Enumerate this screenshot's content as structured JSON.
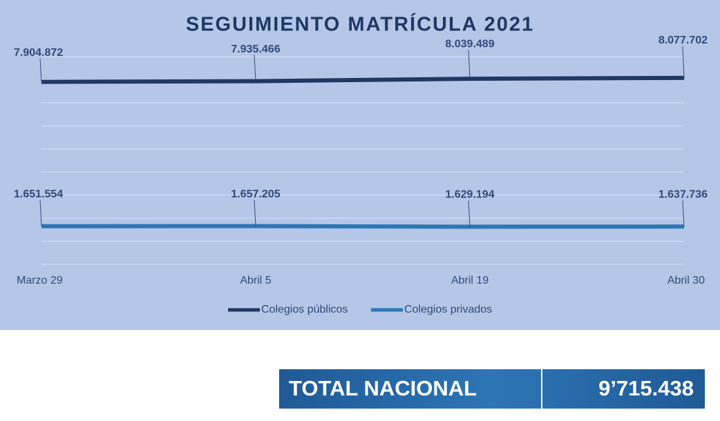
{
  "chart_data": {
    "type": "line",
    "title": "SEGUIMIENTO MATRÍCULA 2021",
    "categories": [
      "Marzo 29",
      "Abril 5",
      "Abril 19",
      "Abril 30"
    ],
    "series": [
      {
        "name": "Colegios públicos",
        "color": "#1f3864",
        "values": [
          7904872,
          7935466,
          8039489,
          8077702
        ],
        "value_labels": [
          "7.904.872",
          "7.935.466",
          "8.039.489",
          "8.077.702"
        ]
      },
      {
        "name": "Colegios privados",
        "color": "#2e75b6",
        "values": [
          1651554,
          1657205,
          1629194,
          1637736
        ],
        "value_labels": [
          "1.651.554",
          "1.657.205",
          "1.629.194",
          "1.637.736"
        ]
      }
    ],
    "ylim": [
      0,
      9000000
    ],
    "yticks": [
      0,
      1000000,
      2000000,
      3000000,
      4000000,
      5000000,
      6000000,
      7000000,
      8000000,
      9000000
    ],
    "grid": true,
    "legend": "bottom"
  },
  "total": {
    "label": "TOTAL NACIONAL",
    "value": "9’715.438"
  }
}
